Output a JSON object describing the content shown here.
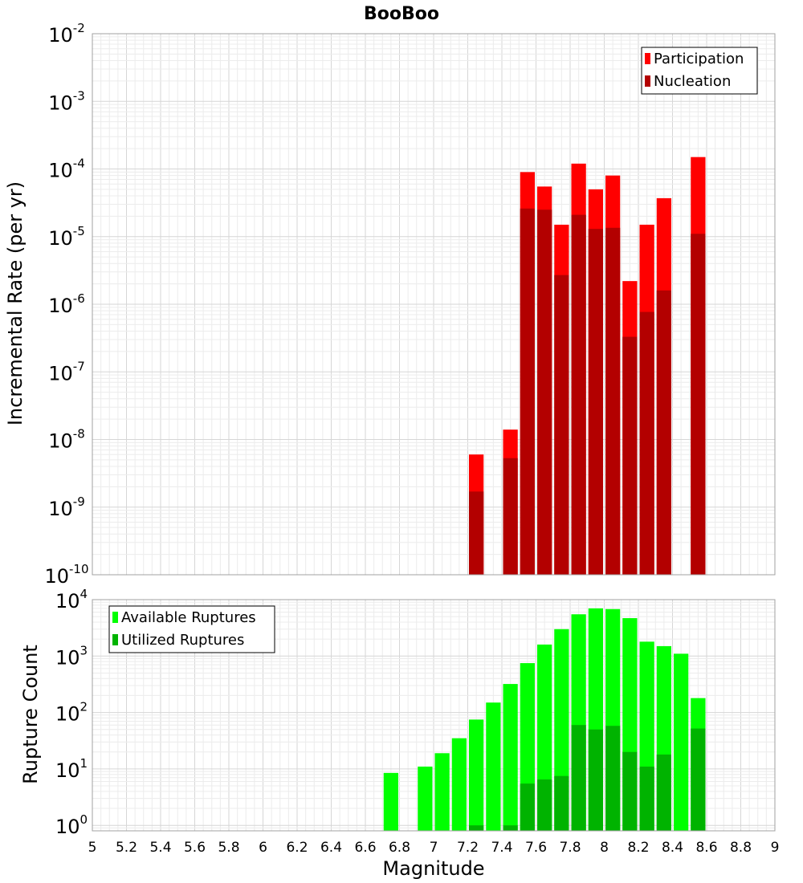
{
  "chart_data": [
    {
      "type": "bar",
      "title": "BooBoo",
      "ylabel": "Incremental Rate (per yr)",
      "yscale": "log",
      "ylim": [
        1e-10,
        0.01
      ],
      "xlim": [
        5,
        9
      ],
      "bin_width": 0.1,
      "grid": true,
      "legend_position": "top-right",
      "series": [
        {
          "name": "Participation",
          "color": "#ff0000",
          "x": [
            7.25,
            7.45,
            7.55,
            7.65,
            7.75,
            7.85,
            7.95,
            8.05,
            8.15,
            8.25,
            8.35,
            8.55
          ],
          "values": [
            6e-09,
            1.4e-08,
            9e-05,
            5.5e-05,
            1.5e-05,
            0.00012,
            5e-05,
            8e-05,
            2.2e-06,
            1.5e-05,
            3.7e-05,
            0.00015
          ]
        },
        {
          "name": "Nucleation",
          "color": "#b30000",
          "x": [
            7.25,
            7.45,
            7.55,
            7.65,
            7.75,
            7.85,
            7.95,
            8.05,
            8.15,
            8.25,
            8.35,
            8.55
          ],
          "values": [
            1.7e-09,
            5.3e-09,
            2.6e-05,
            2.5e-05,
            2.7e-06,
            2.1e-05,
            1.3e-05,
            1.35e-05,
            3.3e-07,
            7.7e-07,
            1.6e-06,
            1.1e-05
          ]
        }
      ]
    },
    {
      "type": "bar",
      "xlabel": "Magnitude",
      "ylabel": "Rupture Count",
      "yscale": "log",
      "ylim": [
        0.8,
        10000
      ],
      "xlim": [
        5,
        9
      ],
      "bin_width": 0.1,
      "xticks": [
        "5",
        "5.2",
        "5.4",
        "5.6",
        "5.8",
        "6",
        "6.2",
        "6.4",
        "6.6",
        "6.8",
        "7",
        "7.2",
        "7.4",
        "7.6",
        "7.8",
        "8",
        "8.2",
        "8.4",
        "8.6",
        "8.8",
        "9"
      ],
      "grid": true,
      "legend_position": "top-left",
      "series": [
        {
          "name": "Available Ruptures",
          "color": "#00ff00",
          "x": [
            6.75,
            6.95,
            7.05,
            7.15,
            7.25,
            7.35,
            7.45,
            7.55,
            7.65,
            7.75,
            7.85,
            7.95,
            8.05,
            8.15,
            8.25,
            8.35,
            8.45,
            8.55
          ],
          "values": [
            8.5,
            11,
            19,
            35,
            75,
            150,
            320,
            750,
            1600,
            3000,
            5500,
            7000,
            6800,
            4700,
            1800,
            1500,
            1100,
            180
          ]
        },
        {
          "name": "Utilized Ruptures",
          "color": "#00b300",
          "x": [
            7.25,
            7.45,
            7.55,
            7.65,
            7.75,
            7.85,
            7.95,
            8.05,
            8.15,
            8.25,
            8.35,
            8.55
          ],
          "values": [
            1,
            1,
            5.5,
            6.5,
            7.5,
            60,
            50,
            58,
            20,
            11,
            18,
            52
          ]
        }
      ]
    }
  ]
}
